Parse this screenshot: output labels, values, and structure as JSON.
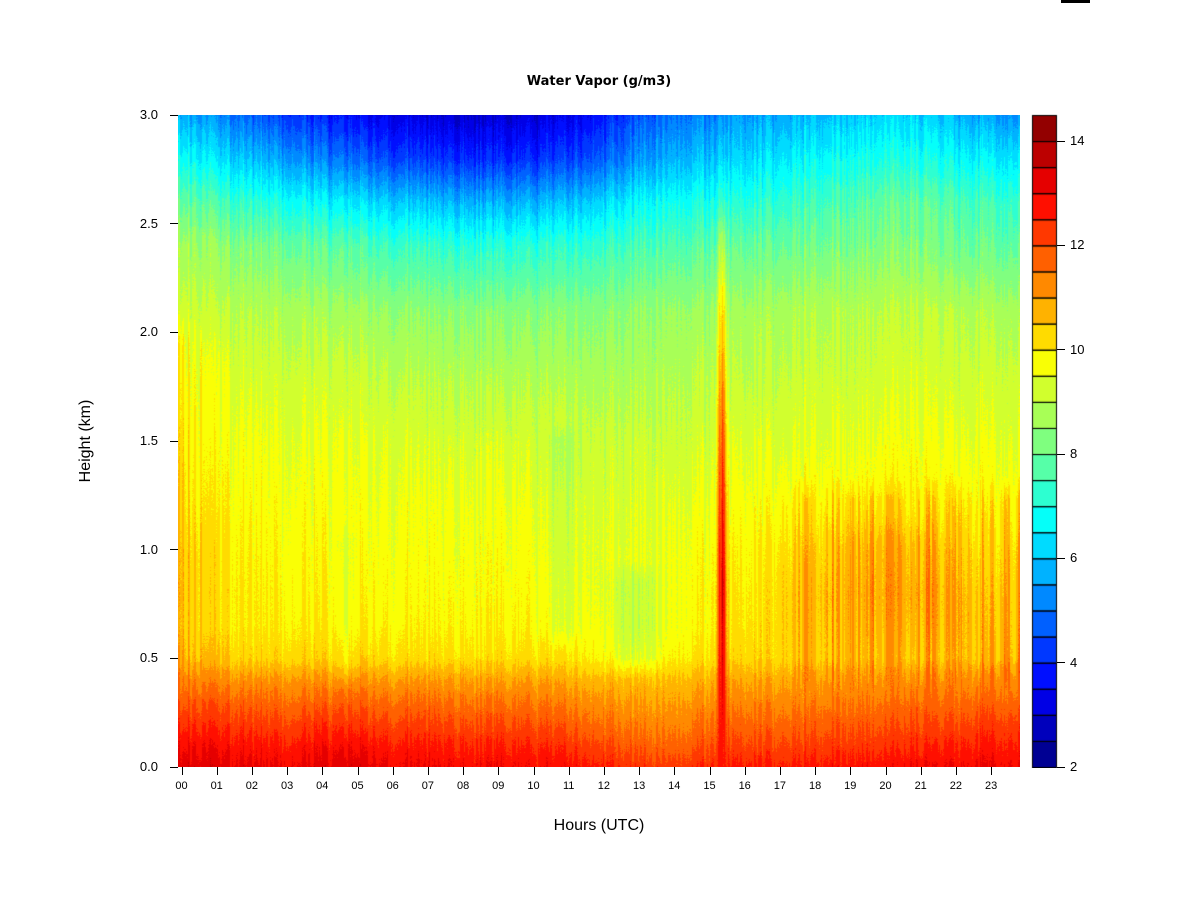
{
  "colors": {
    "background": "#ffffff",
    "axis": "#000000",
    "artifact": "#000000"
  },
  "chart_data": {
    "type": "heatmap",
    "title": "Water Vapor (g/m3)",
    "xlabel": "Hours (UTC)",
    "ylabel": "Height (km)",
    "colormap": "jet",
    "x_range_hours": [
      0,
      24
    ],
    "y_range_km": [
      0,
      3
    ],
    "value_range": [
      2,
      14.5
    ],
    "contour_interval": 0.5,
    "x_tick_labels": [
      "00",
      "01",
      "02",
      "03",
      "04",
      "05",
      "06",
      "07",
      "08",
      "09",
      "10",
      "11",
      "12",
      "13",
      "14",
      "15",
      "16",
      "17",
      "18",
      "19",
      "20",
      "21",
      "22",
      "23"
    ],
    "y_tick_values": [
      0,
      0.5,
      1,
      1.5,
      2,
      2.5,
      3
    ],
    "y_tick_labels": [
      "0.0",
      "0.5",
      "1.0",
      "1.5",
      "2.0",
      "2.5",
      "3.0"
    ],
    "colorbar_tick_values": [
      2,
      4,
      6,
      8,
      10,
      12,
      14
    ],
    "colorbar_tick_labels": [
      "2",
      "4",
      "6",
      "8",
      "10",
      "12",
      "14"
    ],
    "colorbar_segments": 25,
    "grid": {
      "hours": [
        0,
        1,
        2,
        3,
        4,
        5,
        6,
        7,
        8,
        9,
        10,
        11,
        12,
        13,
        14,
        15,
        16,
        17,
        18,
        19,
        20,
        21,
        22,
        23,
        24
      ],
      "heights_km": [
        0.0,
        0.1,
        0.2,
        0.3,
        0.4,
        0.5,
        0.65,
        0.8,
        1.0,
        1.2,
        1.5,
        1.8,
        2.1,
        2.4,
        2.6,
        2.8,
        3.0
      ],
      "values_g_m3": [
        [
          13.2,
          13.2,
          13.1,
          13.0,
          13.2,
          13.2,
          13.0,
          13.0,
          12.9,
          12.9,
          12.8,
          12.8,
          12.6,
          12.3,
          12.2,
          12.5,
          12.6,
          12.6,
          12.7,
          12.8,
          12.8,
          12.9,
          12.9,
          13.0,
          13.0
        ],
        [
          12.8,
          12.8,
          12.7,
          12.6,
          12.8,
          12.8,
          12.6,
          12.6,
          12.5,
          12.5,
          12.4,
          12.3,
          12.1,
          11.8,
          11.7,
          12.0,
          12.1,
          12.1,
          12.2,
          12.3,
          12.3,
          12.4,
          12.5,
          12.6,
          12.6
        ],
        [
          12.3,
          12.3,
          12.2,
          12.1,
          12.3,
          12.2,
          12.1,
          12.1,
          12.0,
          12.0,
          11.9,
          11.8,
          11.6,
          11.4,
          11.3,
          11.6,
          11.7,
          11.7,
          11.8,
          11.9,
          11.9,
          12.0,
          12.0,
          12.2,
          12.2
        ],
        [
          11.8,
          11.8,
          11.7,
          11.6,
          11.7,
          11.7,
          11.6,
          11.6,
          11.5,
          11.5,
          11.4,
          11.3,
          11.2,
          11.0,
          11.0,
          11.2,
          11.3,
          11.3,
          11.4,
          11.5,
          11.5,
          11.6,
          11.6,
          11.7,
          11.7
        ],
        [
          11.2,
          11.2,
          11.1,
          11.1,
          11.1,
          11.1,
          11.0,
          11.0,
          11.0,
          10.9,
          10.9,
          10.8,
          10.7,
          10.6,
          10.6,
          10.8,
          10.9,
          10.9,
          11.0,
          11.0,
          11.0,
          11.1,
          11.1,
          11.2,
          11.2
        ],
        [
          10.4,
          10.4,
          10.3,
          10.3,
          10.3,
          10.3,
          10.2,
          10.2,
          10.2,
          10.2,
          10.1,
          10.1,
          10.0,
          9.9,
          10.0,
          10.2,
          10.3,
          10.3,
          10.4,
          10.4,
          10.4,
          10.4,
          10.4,
          10.5,
          10.5
        ],
        [
          10.1,
          10.1,
          10.0,
          10.0,
          10.0,
          9.9,
          9.9,
          9.9,
          9.9,
          9.9,
          9.8,
          9.8,
          9.7,
          9.6,
          9.7,
          9.9,
          10.1,
          10.3,
          10.5,
          10.5,
          10.6,
          10.6,
          10.5,
          10.4,
          10.4
        ],
        [
          10.2,
          10.1,
          10.0,
          9.9,
          9.9,
          9.8,
          9.8,
          9.8,
          9.8,
          9.8,
          9.7,
          9.7,
          9.6,
          9.6,
          9.7,
          9.9,
          10.0,
          10.3,
          10.5,
          10.6,
          10.7,
          10.7,
          10.5,
          10.3,
          10.3
        ],
        [
          10.1,
          10.0,
          9.9,
          9.8,
          9.8,
          9.7,
          9.7,
          9.7,
          9.7,
          9.7,
          9.6,
          9.6,
          9.5,
          9.5,
          9.6,
          9.8,
          9.9,
          10.1,
          10.3,
          10.4,
          10.6,
          10.5,
          10.3,
          10.1,
          10.1
        ],
        [
          9.9,
          9.8,
          9.8,
          9.7,
          9.7,
          9.6,
          9.6,
          9.6,
          9.6,
          9.6,
          9.5,
          9.5,
          9.4,
          9.4,
          9.5,
          9.6,
          9.7,
          9.8,
          9.9,
          9.9,
          10.0,
          9.9,
          9.9,
          9.8,
          9.8
        ],
        [
          9.7,
          9.6,
          9.6,
          9.5,
          9.5,
          9.4,
          9.4,
          9.3,
          9.3,
          9.3,
          9.2,
          9.2,
          9.2,
          9.2,
          9.2,
          9.3,
          9.4,
          9.4,
          9.5,
          9.5,
          9.6,
          9.6,
          9.5,
          9.5,
          9.5
        ],
        [
          9.5,
          9.4,
          9.3,
          9.2,
          9.2,
          9.1,
          9.0,
          8.9,
          8.9,
          8.8,
          8.8,
          8.8,
          8.8,
          8.8,
          8.9,
          9.0,
          9.0,
          9.1,
          9.2,
          9.2,
          9.3,
          9.3,
          9.2,
          9.2,
          9.2
        ],
        [
          9.2,
          9.0,
          8.9,
          8.8,
          8.7,
          8.6,
          8.5,
          8.4,
          8.4,
          8.3,
          8.3,
          8.3,
          8.4,
          8.5,
          8.6,
          8.6,
          8.7,
          8.8,
          8.9,
          8.9,
          9.0,
          9.0,
          8.9,
          8.8,
          8.8
        ],
        [
          8.6,
          8.4,
          8.2,
          8.0,
          7.8,
          7.6,
          7.4,
          7.3,
          7.2,
          7.1,
          7.1,
          7.2,
          7.4,
          7.6,
          7.7,
          7.8,
          7.9,
          8.0,
          8.1,
          8.2,
          8.3,
          8.2,
          8.0,
          7.9,
          7.9
        ],
        [
          7.8,
          7.5,
          7.2,
          6.9,
          6.6,
          6.3,
          6.1,
          5.9,
          5.8,
          5.7,
          5.7,
          5.9,
          6.3,
          6.7,
          6.9,
          7.0,
          7.1,
          7.3,
          7.5,
          7.7,
          7.9,
          7.8,
          7.6,
          7.4,
          7.4
        ],
        [
          6.7,
          6.3,
          5.9,
          5.5,
          5.1,
          4.7,
          4.4,
          4.2,
          4.1,
          4.0,
          4.0,
          4.3,
          4.8,
          5.4,
          5.8,
          6.0,
          6.2,
          6.5,
          6.7,
          6.9,
          7.0,
          6.9,
          6.7,
          6.5,
          6.5
        ],
        [
          5.6,
          5.2,
          4.7,
          4.3,
          3.9,
          3.5,
          3.3,
          3.1,
          3.0,
          3.0,
          3.0,
          3.3,
          3.9,
          4.6,
          5.0,
          5.2,
          5.5,
          5.7,
          5.9,
          6.1,
          6.2,
          6.1,
          5.8,
          5.5,
          5.4
        ]
      ]
    },
    "features": {
      "plume": {
        "hour_center": 15.35,
        "hour_sigma": 0.08,
        "amplitude_by_height": [
          [
            0,
            0.2
          ],
          [
            0.15,
            1.0
          ],
          [
            0.3,
            1.8
          ],
          [
            0.5,
            3.2
          ],
          [
            0.8,
            3.7
          ],
          [
            1.2,
            3.3
          ],
          [
            1.6,
            2.8
          ],
          [
            1.9,
            2.1
          ],
          [
            2.2,
            1.6
          ],
          [
            2.45,
            1.0
          ],
          [
            2.6,
            0.3
          ],
          [
            3.0,
            0
          ]
        ]
      },
      "left_edge_streaks": {
        "hour_range": [
          0,
          1.4
        ],
        "height_range_km": [
          0.5,
          1.95
        ],
        "max_boost": 0.8
      },
      "evening_streaks": {
        "hour_range": [
          16.8,
          24
        ],
        "height_range_km": [
          0.45,
          1.22
        ],
        "max_boost": 1.0
      },
      "dips": [
        {
          "hour_center": 4.65,
          "hour_sigma": 0.18,
          "height_range_km": [
            0.45,
            1.05
          ],
          "amplitude": -0.45
        },
        {
          "hour_center": 10.8,
          "hour_sigma": 0.3,
          "height_range_km": [
            0.62,
            1.5
          ],
          "amplitude": -0.5
        },
        {
          "hour_center": 12.9,
          "hour_sigma": 0.5,
          "height_range_km": [
            0.5,
            0.85
          ],
          "amplitude": -0.55
        }
      ]
    }
  }
}
